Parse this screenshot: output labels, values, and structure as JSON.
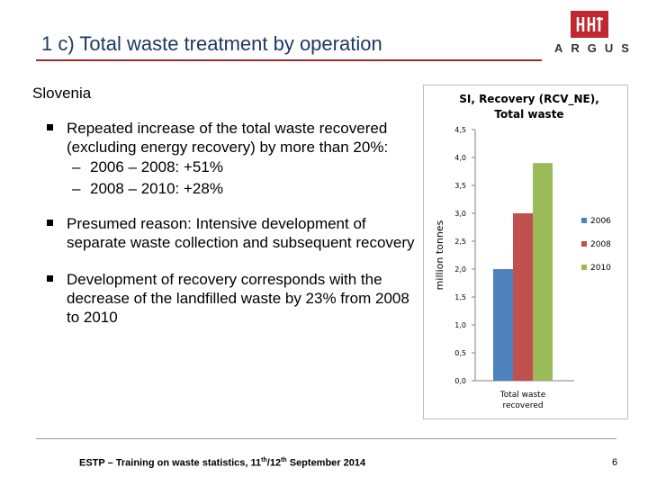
{
  "slide": {
    "title": "1 c) Total waste treatment by operation",
    "logo_text": "ARGUS",
    "section": "Slovenia"
  },
  "bullets": [
    {
      "text": "Repeated increase of the total waste recovered (excluding energy recovery) by more than 20%:",
      "subs": [
        "2006 – 2008: +51%",
        "2008 – 2010: +28%"
      ]
    },
    {
      "text": "Presumed reason: Intensive development of separate waste collection and subsequent recovery"
    },
    {
      "text": "Development of recovery corresponds with the decrease of the landfilled waste by 23% from 2008 to 2010"
    }
  ],
  "footer": {
    "text_main": "ESTP – Training on waste statistics, 11",
    "sup1": "th",
    "text_mid": "/12",
    "sup2": "th",
    "text_end": " September 2014",
    "page": "6"
  },
  "colors": {
    "title": "#1f3864",
    "rule": "#9e2a2a",
    "logo": "#c0282d"
  },
  "chart_data": {
    "type": "bar",
    "title": "SI, Recovery (RCV_NE), Total waste",
    "ylabel": "million tonnes",
    "xlabel": "",
    "categories": [
      "Total waste recovered"
    ],
    "series": [
      {
        "name": "2006",
        "values": [
          2.0
        ],
        "color": "#4f81bd"
      },
      {
        "name": "2008",
        "values": [
          3.0
        ],
        "color": "#c0504d"
      },
      {
        "name": "2010",
        "values": [
          3.9
        ],
        "color": "#9bbb59"
      }
    ],
    "ylim": [
      0.0,
      4.5
    ],
    "yticks": [
      "0,0",
      "0,5",
      "1,0",
      "1,5",
      "2,0",
      "2,5",
      "3,0",
      "3,5",
      "4,0",
      "4,5"
    ],
    "grid": false,
    "legend": "right"
  }
}
